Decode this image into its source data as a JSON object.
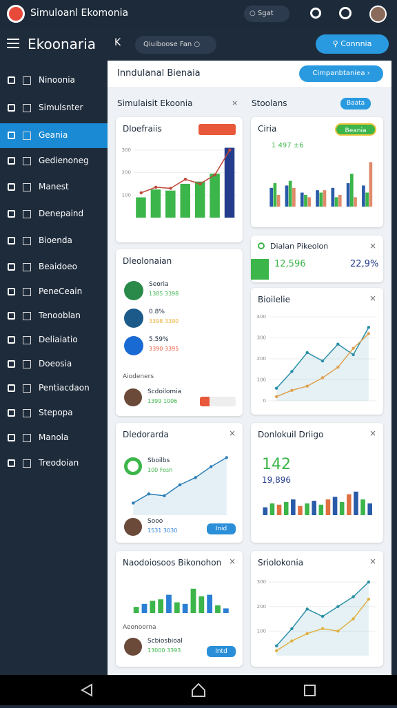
{
  "top_bar": {
    "title": "Simuloanl Ekomonia",
    "search": "Sgat"
  },
  "header": {
    "title": "Ekoonaria",
    "search": "Qiuiboose Fan",
    "button": "Connnia"
  },
  "sidebar": {
    "items": [
      "Ninoonia",
      "Simulsnter",
      "Geania",
      "Gedienoneg",
      "Manest",
      "Denepaind",
      "Bioenda",
      "Beaidoeo",
      "PeneCeain",
      "Tenooblan",
      "Deliaiatio",
      "Doeosia",
      "Pentiacdaon",
      "Stepopa",
      "Manola",
      "Treodoian"
    ],
    "active": 2
  },
  "main": {
    "title": "Inndulanal Bienaia",
    "button": "Cimpanbtaniea",
    "left_section": "Simulaisit Ekoonia",
    "right_section": "Stoolans",
    "right_tag": "Baata"
  },
  "cards": {
    "c1": {
      "title": "Dloefraiis",
      "chart": {
        "type": "bar",
        "ylim": [
          0,
          330
        ],
        "yticks": [
          100,
          200,
          300
        ],
        "series": [
          {
            "type": "bar",
            "colors": [
              "#3cb54a",
              "#3cb54a",
              "#3cb54a",
              "#3cb54a",
              "#3cb54a",
              "#3cb54a",
              "#243c8c"
            ],
            "values": [
              90,
              125,
              120,
              150,
              160,
              195,
              310
            ]
          },
          {
            "type": "line",
            "color": "#c0473a",
            "values": [
              110,
              135,
              130,
              170,
              150,
              190,
              300
            ]
          }
        ]
      }
    },
    "c2": {
      "title": "Dleolonaian",
      "people": [
        {
          "name": "Seoria",
          "value": "1385 3398"
        },
        {
          "name": "0.8%",
          "value": "3398 3390"
        },
        {
          "name": "5.59%",
          "value": "3390 3395"
        }
      ],
      "sub": "Aiodeners",
      "person": {
        "name": "Scdoilomia",
        "value": "1399 1006"
      }
    },
    "c3": {
      "title": "Dledorarda",
      "label": "Sboilbs",
      "value": "100 Fosh",
      "person": {
        "name": "Sooo",
        "value": "1531 3030"
      },
      "button": "Inid",
      "chart": {
        "type": "line",
        "ylim": [
          0,
          100
        ],
        "series": [
          {
            "type": "line",
            "color": "#2a7fb8",
            "values": [
              20,
              35,
              32,
              50,
              62,
              80,
              95
            ]
          }
        ]
      }
    },
    "c4": {
      "title": "Naodoiosoos Bikonohon",
      "sub": "Aeonoorna",
      "person": {
        "name": "Scbiosbioal",
        "value": "13000 3393"
      },
      "button": "Intd",
      "chart": {
        "type": "bar",
        "ylim": [
          0,
          100
        ],
        "series": [
          {
            "type": "bar",
            "colors": [
              "#3cb54a",
              "#2a7fd4",
              "#3cb54a",
              "#3cb54a",
              "#2a7fd4",
              "#3cb54a",
              "#2a7fd4",
              "#3cb54a",
              "#3cb54a",
              "#2a7fd4",
              "#3cb54a",
              "#2a7fd4"
            ],
            "values": [
              20,
              30,
              40,
              45,
              60,
              35,
              30,
              80,
              55,
              60,
              25,
              15
            ]
          }
        ]
      }
    },
    "c5": {
      "title": "Ciria",
      "tag": "Beania",
      "value": "1 497 ±6",
      "chart": {
        "type": "bar",
        "ylim": [
          0,
          100
        ],
        "series": [
          {
            "type": "bar",
            "color": "#2a5ba8",
            "values": [
              40,
              45,
              30,
              35,
              40,
              50,
              45
            ]
          },
          {
            "type": "bar",
            "color": "#3cb54a",
            "values": [
              50,
              55,
              25,
              30,
              20,
              70,
              30
            ]
          },
          {
            "type": "bar",
            "color": "#e08a6a",
            "values": [
              25,
              40,
              20,
              35,
              25,
              20,
              95
            ]
          }
        ]
      }
    },
    "c6": {
      "title": "Dialan Pikeolon",
      "value": "12,596",
      "value2": "22,9%"
    },
    "c7": {
      "title": "Bioilelie",
      "chart": {
        "type": "line",
        "ylim": [
          0,
          420
        ],
        "yticks": [
          0,
          100,
          200,
          300,
          400
        ],
        "series": [
          {
            "type": "line",
            "color": "#2a8fa8",
            "values": [
              60,
              140,
              230,
              190,
              270,
              220,
              350
            ]
          },
          {
            "type": "line",
            "color": "#e0a050",
            "values": [
              20,
              50,
              70,
              110,
              160,
              250,
              320
            ]
          }
        ]
      }
    },
    "c8": {
      "title": "Donlokuil Driigo",
      "value": "142",
      "value2": "19,896",
      "chart": {
        "type": "bar",
        "ylim": [
          0,
          100
        ],
        "series": [
          {
            "type": "bar",
            "colors": [
              "#2a5ba8",
              "#3cb54a",
              "#e07040",
              "#3cb54a",
              "#2a5ba8",
              "#e07040",
              "#3cb54a",
              "#2a5ba8",
              "#3cb54a",
              "#e07040",
              "#2a5ba8",
              "#3cb54a",
              "#e07040",
              "#2a5ba8",
              "#3cb54a",
              "#2a5ba8"
            ],
            "values": [
              30,
              45,
              40,
              50,
              60,
              35,
              45,
              55,
              40,
              60,
              70,
              50,
              80,
              90,
              60,
              45
            ]
          }
        ]
      }
    },
    "c9": {
      "title": "Sriolokonia",
      "chart": {
        "type": "line",
        "ylim": [
          0,
          320
        ],
        "yticks": [
          100,
          200,
          300
        ],
        "series": [
          {
            "type": "line",
            "color": "#2a8fa8",
            "values": [
              40,
              110,
              190,
              160,
              200,
              240,
              300
            ]
          },
          {
            "type": "line",
            "color": "#e0b040",
            "values": [
              20,
              60,
              90,
              110,
              100,
              150,
              230
            ]
          }
        ]
      }
    }
  }
}
